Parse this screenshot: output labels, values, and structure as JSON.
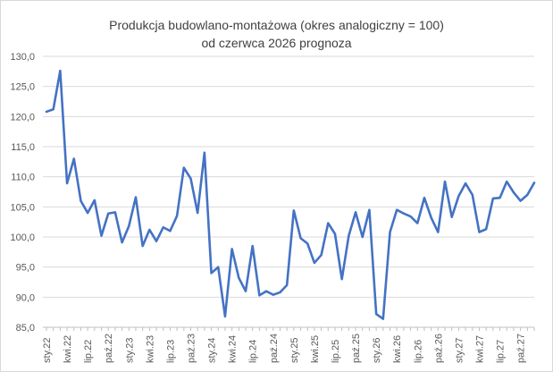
{
  "chart_data": {
    "type": "line",
    "title": "Produkcja budowlano-montażowa (okres analogiczny = 100)",
    "subtitle": "od  czerwca 2026 prognoza",
    "xlabel": "",
    "ylabel": "",
    "ylim": [
      85.0,
      130.0
    ],
    "yticks": [
      "85,0",
      "90,0",
      "95,0",
      "100,0",
      "105,0",
      "110,0",
      "115,0",
      "120,0",
      "125,0",
      "130,0"
    ],
    "grid": true,
    "legend": "none",
    "line_color": "#4472C4",
    "x": [
      "sty.22",
      "lut.22",
      "mar.22",
      "kwi.22",
      "maj.22",
      "cze.22",
      "lip.22",
      "sie.22",
      "wrz.22",
      "paź.22",
      "lis.22",
      "gru.22",
      "sty.23",
      "lut.23",
      "mar.23",
      "kwi.23",
      "maj.23",
      "cze.23",
      "lip.23",
      "sie.23",
      "wrz.23",
      "paź.23",
      "lis.23",
      "gru.23",
      "sty.24",
      "lut.24",
      "mar.24",
      "kwi.24",
      "maj.24",
      "cze.24",
      "lip.24",
      "sie.24",
      "wrz.24",
      "paź.24",
      "lis.24",
      "gru.24",
      "sty.25",
      "lut.25",
      "mar.25",
      "kwi.25",
      "maj.25",
      "cze.25",
      "lip.25",
      "sie.25",
      "wrz.25",
      "paź.25",
      "lis.25",
      "gru.25",
      "sty.26",
      "lut.26",
      "mar.26",
      "kwi.26",
      "maj.26",
      "cze.26",
      "lip.26",
      "sie.26",
      "wrz.26",
      "paź.26",
      "lis.26",
      "gru.26",
      "sty.27",
      "lut.27",
      "mar.27",
      "kwi.27",
      "maj.27",
      "cze.27",
      "lip.27",
      "sie.27",
      "wrz.27",
      "paź.27",
      "lis.27",
      "gru.27"
    ],
    "x_tick_labels": [
      "sty.22",
      "kwi.22",
      "lip.22",
      "paź.22",
      "sty.23",
      "kwi.23",
      "lip.23",
      "paź.23",
      "sty.24",
      "kwi.24",
      "lip.24",
      "paź.24",
      "sty.25",
      "kwi.25",
      "lip.25",
      "paź.25",
      "sty.26",
      "kwi.26",
      "lip.26",
      "paź.26",
      "sty.27",
      "kwi.27",
      "lip.27",
      "paź.27"
    ],
    "series": [
      {
        "values": [
          120.8,
          121.2,
          127.6,
          108.9,
          113.0,
          106.0,
          104.0,
          106.1,
          100.2,
          103.9,
          104.1,
          99.1,
          101.8,
          106.6,
          98.5,
          101.2,
          99.3,
          101.6,
          101.0,
          103.5,
          111.5,
          109.7,
          104.0,
          114.0,
          94.0,
          95.0,
          86.8,
          98.0,
          93.2,
          91.0,
          98.5,
          90.3,
          91.0,
          90.4,
          90.8,
          92.0,
          104.4,
          99.8,
          98.9,
          95.7,
          97.0,
          102.3,
          100.5,
          93.0,
          100.2,
          104.1,
          100.0,
          104.5,
          87.2,
          86.4,
          100.8,
          104.5,
          103.9,
          103.4,
          102.3,
          106.5,
          103.2,
          100.8,
          109.2,
          103.3,
          106.8,
          108.9,
          107.0,
          100.8,
          101.3,
          106.4,
          106.5,
          109.2,
          107.4,
          106.0,
          107.0,
          109.0
        ]
      }
    ]
  }
}
